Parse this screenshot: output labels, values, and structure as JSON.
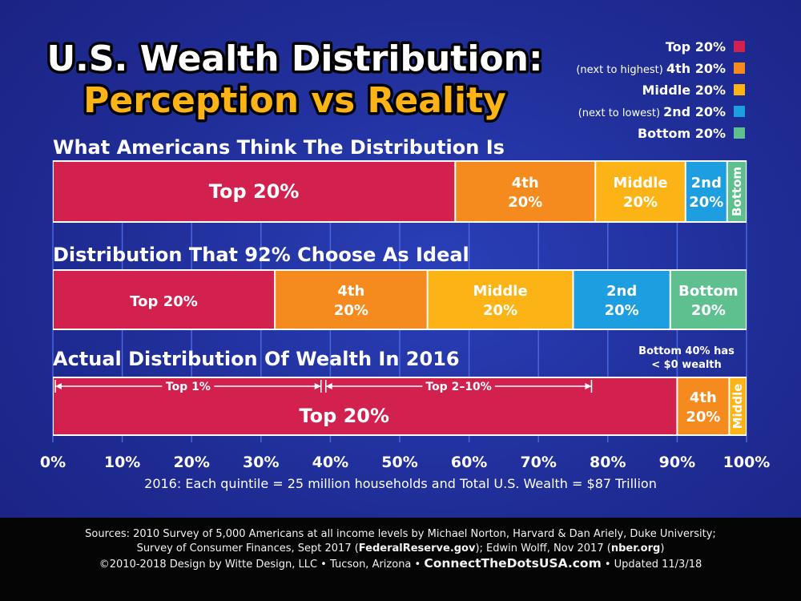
{
  "title_line1": "U.S. Wealth Distribution:",
  "title_line2": "Perception vs Reality",
  "legend": [
    {
      "prefix": "",
      "label": "Top 20%",
      "color": "#d2214f"
    },
    {
      "prefix": "(next to highest) ",
      "label": "4th 20%",
      "color": "#f58b1f"
    },
    {
      "prefix": "",
      "label": "Middle 20%",
      "color": "#fbb315"
    },
    {
      "prefix": "(next to lowest) ",
      "label": "2nd 20%",
      "color": "#1d9ee0"
    },
    {
      "prefix": "",
      "label": "Bottom 20%",
      "color": "#5fc08f"
    }
  ],
  "chart_data": {
    "type": "bar",
    "orientation": "horizontal-stacked",
    "xlim": [
      0,
      100
    ],
    "xticks": [
      "0%",
      "10%",
      "20%",
      "30%",
      "40%",
      "50%",
      "60%",
      "70%",
      "80%",
      "90%",
      "100%"
    ],
    "xlabel": "2016: Each quintile = 25 million households and Total U.S. Wealth = $87 Trillion",
    "series_colors": [
      "#d2214f",
      "#f58b1f",
      "#fbb315",
      "#1d9ee0",
      "#5fc08f"
    ],
    "bars": [
      {
        "title": "What Americans Think The Distribution Is",
        "segments": [
          {
            "label": [
              "Top 20%"
            ],
            "value": 58,
            "color": "#d2214f"
          },
          {
            "label": [
              "4th",
              "20%"
            ],
            "value": 20.2,
            "color": "#f58b1f"
          },
          {
            "label": [
              "Middle",
              "20%"
            ],
            "value": 13.0,
            "color": "#fbb315"
          },
          {
            "label": [
              "2nd",
              "20%"
            ],
            "value": 6.0,
            "color": "#1d9ee0"
          },
          {
            "label": [
              "Bottom"
            ],
            "value": 2.8,
            "color": "#5fc08f",
            "vertical": true
          }
        ]
      },
      {
        "title": "Distribution That 92% Choose As Ideal",
        "segments": [
          {
            "label": [
              "Top 20%"
            ],
            "value": 32,
            "color": "#d2214f"
          },
          {
            "label": [
              "4th",
              "20%"
            ],
            "value": 22,
            "color": "#f58b1f"
          },
          {
            "label": [
              "Middle",
              "20%"
            ],
            "value": 21,
            "color": "#fbb315"
          },
          {
            "label": [
              "2nd",
              "20%"
            ],
            "value": 14,
            "color": "#1d9ee0"
          },
          {
            "label": [
              "Bottom",
              "20%"
            ],
            "value": 11,
            "color": "#5fc08f"
          }
        ]
      },
      {
        "title": "Actual Distribution Of Wealth In 2016",
        "note": [
          "Bottom 40% has",
          "< $0 wealth"
        ],
        "segments": [
          {
            "label": [
              "Top 20%"
            ],
            "value": 90,
            "color": "#d2214f"
          },
          {
            "label": [
              "4th",
              "20%"
            ],
            "value": 7.5,
            "color": "#f58b1f"
          },
          {
            "label": [
              "Middle"
            ],
            "value": 2.5,
            "color": "#fbb315",
            "vertical": true
          }
        ],
        "brackets": [
          {
            "label": "Top 1%",
            "from": 0,
            "to": 39
          },
          {
            "label": "Top 2–10%",
            "from": 39,
            "to": 78
          }
        ]
      }
    ]
  },
  "footer": {
    "line1": "Sources: 2010 Survey of 5,000 Americans at all income levels by Michael Norton, Harvard & Dan Ariely, Duke University;",
    "line2_a": "Survey of Consumer Finances, Sept 2017 (",
    "line2_b": "FederalReserve.gov",
    "line2_c": "); Edwin Wolff, Nov 2017 (",
    "line2_d": "nber.org",
    "line2_e": ")",
    "line3_a": "©2010-2018 Design by Witte Design, LLC • Tucson, Arizona • ",
    "line3_b": "ConnectTheDotsUSA.com",
    "line3_c": " • Updated 11/3/18"
  }
}
